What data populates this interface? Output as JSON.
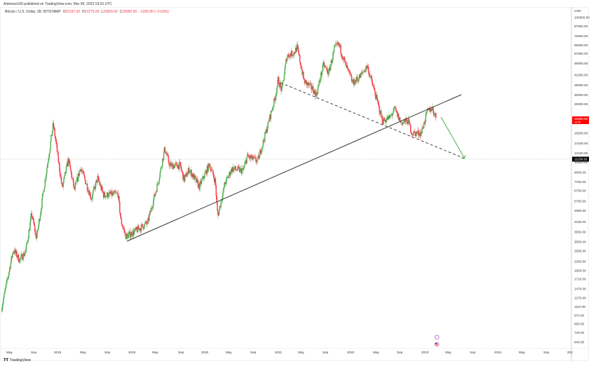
{
  "publisher": "Anbesse100 published on TradingView.com, Mar 09, 2023 19:23 UTC",
  "legend": {
    "symbol": "Bitcoin / U.S. Dollar, 3D, BITSTAMP",
    "o_label": "O",
    "o": "22197.00",
    "h_label": "H",
    "h": "22275.00",
    "l_label": "L",
    "l": "20816.00",
    "c_label": "C",
    "c": "20950.00",
    "change": "−1250.00 (−5.63%)"
  },
  "price_tag": {
    "value": "20950.00",
    "countdown": "1d 5h",
    "color": "#ff0000"
  },
  "level_tag": {
    "value": "11159.93",
    "color": "#000000"
  },
  "brand": "TradingView",
  "colors": {
    "up": "#26a69a",
    "up_candle": "#4caf50",
    "down": "#f23645",
    "trendline": "#333333",
    "arrow": "#4caf50"
  },
  "chart_data": {
    "type": "candlestick",
    "title": "Bitcoin / U.S. Dollar, 3D, BITSTAMP",
    "y_scale": "log",
    "y_unit": "USD",
    "ylim": [
      600,
      110000
    ],
    "y_ticks": [
      "100000.00",
      "87500.00",
      "75000.00",
      "65000.00",
      "57000.00",
      "49000.00",
      "41000.00",
      "35000.00",
      "30000.00",
      "26000.00",
      "22000.00",
      "19500.00",
      "16500.00",
      "14100.00",
      "12100.00",
      "10500.00",
      "9000.00",
      "7750.00",
      "6750.00",
      "5750.00",
      "4950.00",
      "4150.00",
      "3550.00",
      "3050.00",
      "2650.00",
      "2250.00",
      "1950.00",
      "1710.00",
      "1470.00",
      "1270.00",
      "1110.00",
      "970.00",
      "850.00",
      "740.00",
      "640.00"
    ],
    "x_ticks": [
      "May",
      "Sep",
      "2018",
      "May",
      "Sep",
      "2019",
      "May",
      "Sep",
      "2020",
      "May",
      "Sep",
      "2021",
      "May",
      "Sep",
      "2022",
      "May",
      "Sep",
      "2023",
      "May",
      "Sep",
      "2024",
      "May",
      "Sep",
      "202"
    ],
    "x_range": [
      "2017-04",
      "2025-01"
    ],
    "approx_close_path": [
      [
        "2017-04",
        1050
      ],
      [
        "2017-06",
        2700
      ],
      [
        "2017-07",
        2300
      ],
      [
        "2017-08",
        2600
      ],
      [
        "2017-09",
        4700
      ],
      [
        "2017-09-25",
        3200
      ],
      [
        "2017-11",
        7000
      ],
      [
        "2017-12-17",
        19000
      ],
      [
        "2018-01",
        14000
      ],
      [
        "2018-02",
        7000
      ],
      [
        "2018-03",
        11000
      ],
      [
        "2018-04",
        6800
      ],
      [
        "2018-05",
        9700
      ],
      [
        "2018-06-25",
        6000
      ],
      [
        "2018-07-25",
        8200
      ],
      [
        "2018-08-25",
        6300
      ],
      [
        "2018-11-05",
        6400
      ],
      [
        "2018-11-20",
        4200
      ],
      [
        "2018-12-15",
        3300
      ],
      [
        "2019-02",
        3600
      ],
      [
        "2019-04",
        4100
      ],
      [
        "2019-05-25",
        8000
      ],
      [
        "2019-06-25",
        13000
      ],
      [
        "2019-07-20",
        10000
      ],
      [
        "2019-09-10",
        10000
      ],
      [
        "2019-09-30",
        8000
      ],
      [
        "2019-10-25",
        9400
      ],
      [
        "2019-12-15",
        7200
      ],
      [
        "2020-02-05",
        10200
      ],
      [
        "2020-03-03",
        7800
      ],
      [
        "2020-03-15",
        4500
      ],
      [
        "2020-04-20",
        7500
      ],
      [
        "2020-05-25",
        9500
      ],
      [
        "2020-07-20",
        9200
      ],
      [
        "2020-08-10",
        11500
      ],
      [
        "2020-10-01",
        10700
      ],
      [
        "2020-11-05",
        15500
      ],
      [
        "2020-12-28",
        29000
      ],
      [
        "2021-01-12",
        38000
      ],
      [
        "2021-01-30",
        32000
      ],
      [
        "2021-02-25",
        55000
      ],
      [
        "2021-04-01",
        58000
      ],
      [
        "2021-04-15",
        63000
      ],
      [
        "2021-05-20",
        37000
      ],
      [
        "2021-07-01",
        33000
      ],
      [
        "2021-07-20",
        30000
      ],
      [
        "2021-08-25",
        48000
      ],
      [
        "2021-09-20",
        42000
      ],
      [
        "2021-10-20",
        62000
      ],
      [
        "2021-11-10",
        66000
      ],
      [
        "2021-12-15",
        47000
      ],
      [
        "2022-01-20",
        36000
      ],
      [
        "2022-02-25",
        40000
      ],
      [
        "2022-03-30",
        47000
      ],
      [
        "2022-05-10",
        30000
      ],
      [
        "2022-06-15",
        20000
      ],
      [
        "2022-07-20",
        21000
      ],
      [
        "2022-08-15",
        24000
      ],
      [
        "2022-09-15",
        19500
      ],
      [
        "2022-10-20",
        20000
      ],
      [
        "2022-11-10",
        16500
      ],
      [
        "2022-12-25",
        16600
      ],
      [
        "2023-01-25",
        23000
      ],
      [
        "2023-02-18",
        24500
      ],
      [
        "2023-03-09",
        20950
      ]
    ],
    "horizontal_level": 11159.93,
    "grid": false
  }
}
